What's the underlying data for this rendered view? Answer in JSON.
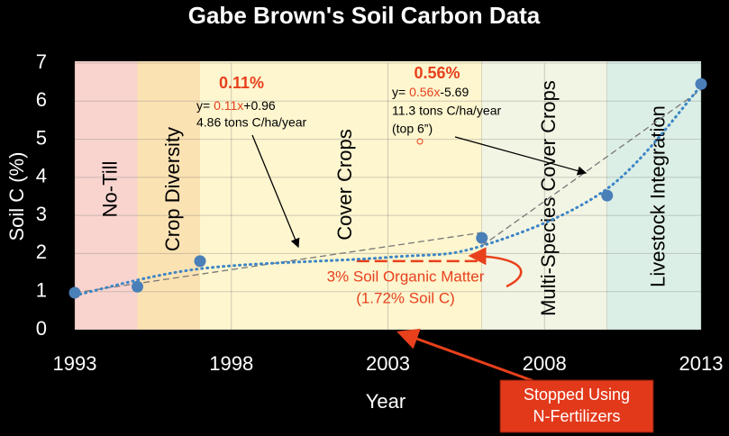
{
  "chart_data": {
    "type": "line",
    "title": "Gabe Brown's Soil Carbon Data",
    "x_label": "Year",
    "y_label": "Soil C (%)",
    "xlim": [
      1993,
      2013
    ],
    "xticks": [
      1993,
      1998,
      2003,
      2008,
      2013
    ],
    "ylim": [
      0,
      7
    ],
    "yticks": [
      0,
      1,
      2,
      3,
      4,
      5,
      6,
      7
    ],
    "grid": true,
    "phases": [
      {
        "label": "No-Till",
        "start": 1993,
        "end": 1995,
        "color": "#f9d4cf"
      },
      {
        "label": "Crop Diversity",
        "start": 1995,
        "end": 1997,
        "color": "#fbe2b3"
      },
      {
        "label": "Cover Crops",
        "start": 1997,
        "end": 2006,
        "color": "#fdf6cf"
      },
      {
        "label": "Multi-Species Cover Crops",
        "start": 2006,
        "end": 2010,
        "color": "#f3f5e4"
      },
      {
        "label": "Livestock Integration",
        "start": 2010,
        "end": 2013,
        "color": "#dcefe6"
      }
    ],
    "series": [
      {
        "color": "#4a7fb8",
        "style": "points",
        "x": [
          1993,
          1995,
          1997,
          2006,
          2010,
          2013
        ],
        "values": [
          0.97,
          1.13,
          1.8,
          2.41,
          3.52,
          6.45
        ]
      },
      {
        "color": "#3d85c6",
        "style": "dotted",
        "x": [
          1993,
          1997,
          2003,
          2006,
          2010,
          2013
        ],
        "values": [
          0.9,
          1.6,
          1.9,
          2.2,
          3.7,
          6.4
        ]
      },
      {
        "color": "#777777",
        "style": "dashed",
        "x": [
          1993,
          2006
        ],
        "values": [
          0.97,
          2.55
        ]
      },
      {
        "color": "#777777",
        "style": "dashed",
        "x": [
          2006,
          2013
        ],
        "values": [
          2.2,
          6.3
        ]
      },
      {
        "color": "#e8401c",
        "style": "redline",
        "x": [
          2002,
          2006
        ],
        "values": [
          1.8,
          1.8
        ]
      }
    ],
    "annotations": {
      "rate1": "0.11%",
      "eq1": {
        "prefix": "y= ",
        "coef": "0.11x",
        "rest": "+0.96"
      },
      "tons1": "4.86 tons C/ha/year",
      "rate2": "0.56%",
      "eq2": {
        "prefix": "y= ",
        "coef": "0.56x",
        "rest": "-5.69"
      },
      "tons2": "11.3 tons C/ha/year",
      "depth": "(top 6”)",
      "som": "3% Soil Organic Matter",
      "soilc": "(1.72% Soil C)",
      "stop1": "Stopped Using",
      "stop2": "N-Fertilizers"
    }
  }
}
